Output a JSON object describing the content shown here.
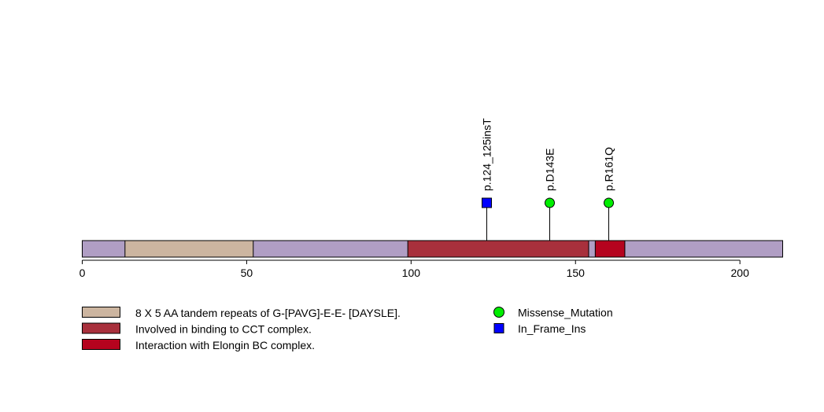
{
  "chart_data": {
    "type": "lollipop",
    "protein_length": 213,
    "xlim": [
      0,
      213
    ],
    "ticks": [
      0,
      50,
      100,
      150,
      200
    ],
    "tick_labels": [
      "0",
      "50",
      "100",
      "150",
      "200"
    ],
    "backbone_color": "#b09ec4",
    "domains": [
      {
        "name": "8 X 5 AA tandem repeats of G-[PAVG]-E-E- [DAYSLE].",
        "start": 13,
        "end": 52,
        "color": "#ccb5a0"
      },
      {
        "name": "Involved in binding to CCT complex.",
        "start": 99,
        "end": 154,
        "color": "#a8303c"
      },
      {
        "name": "Interaction with Elongin BC complex.",
        "start": 156,
        "end": 165,
        "color": "#b5031e"
      }
    ],
    "mutations": [
      {
        "label": "p.124_125insT",
        "position": 123,
        "type": "In_Frame_Ins",
        "count": 1
      },
      {
        "label": "p.D143E",
        "position": 142,
        "type": "Missense_Mutation",
        "count": 1
      },
      {
        "label": "p.R161Q",
        "position": 160,
        "type": "Missense_Mutation",
        "count": 1
      }
    ],
    "mutation_types": [
      {
        "name": "Missense_Mutation",
        "shape": "circle",
        "color": "#00ee00"
      },
      {
        "name": "In_Frame_Ins",
        "shape": "square",
        "color": "#0000ff"
      }
    ]
  }
}
